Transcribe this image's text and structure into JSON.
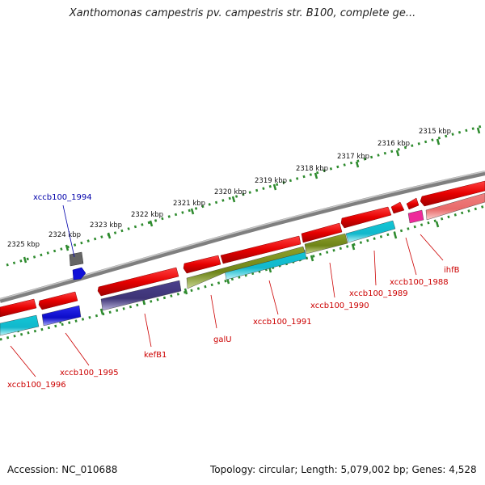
{
  "title": "Xanthomonas campestris pv. campestris str. B100, complete ge...",
  "footer": {
    "accession": "Accession: NC_010688",
    "topology": "Topology: circular; Length: 5,079,002 bp; Genes: 4,528"
  },
  "ruler_labels": [
    "2315 kbp",
    "2316 kbp",
    "2317 kbp",
    "2318 kbp",
    "2319 kbp",
    "2320 kbp",
    "2321 kbp",
    "2322 kbp",
    "2323 kbp",
    "2324 kbp",
    "2325 kbp"
  ],
  "gene_labels": [
    "xccb100_1994",
    "ihfB",
    "xccb100_1988",
    "xccb100_1989",
    "xccb100_1990",
    "xccb100_1991",
    "galU",
    "kefB1",
    "xccb100_1995",
    "xccb100_1996"
  ],
  "colors": {
    "ruler": "#2e8b2e",
    "backbone": "#7f7f7f",
    "gene_forward": "#e60000",
    "gene_reverse": "#e60000",
    "cds_cyan": "#12c6d6",
    "cds_olive": "#7a8f1e",
    "cds_purple": "#4a3f8c",
    "cds_blue": "#1010d8",
    "cds_pink": "#ee2a9a",
    "cds_salmon": "#f08080",
    "cds_gray": "#666666",
    "label_red": "#cc0000",
    "label_blue": "#0000aa"
  }
}
